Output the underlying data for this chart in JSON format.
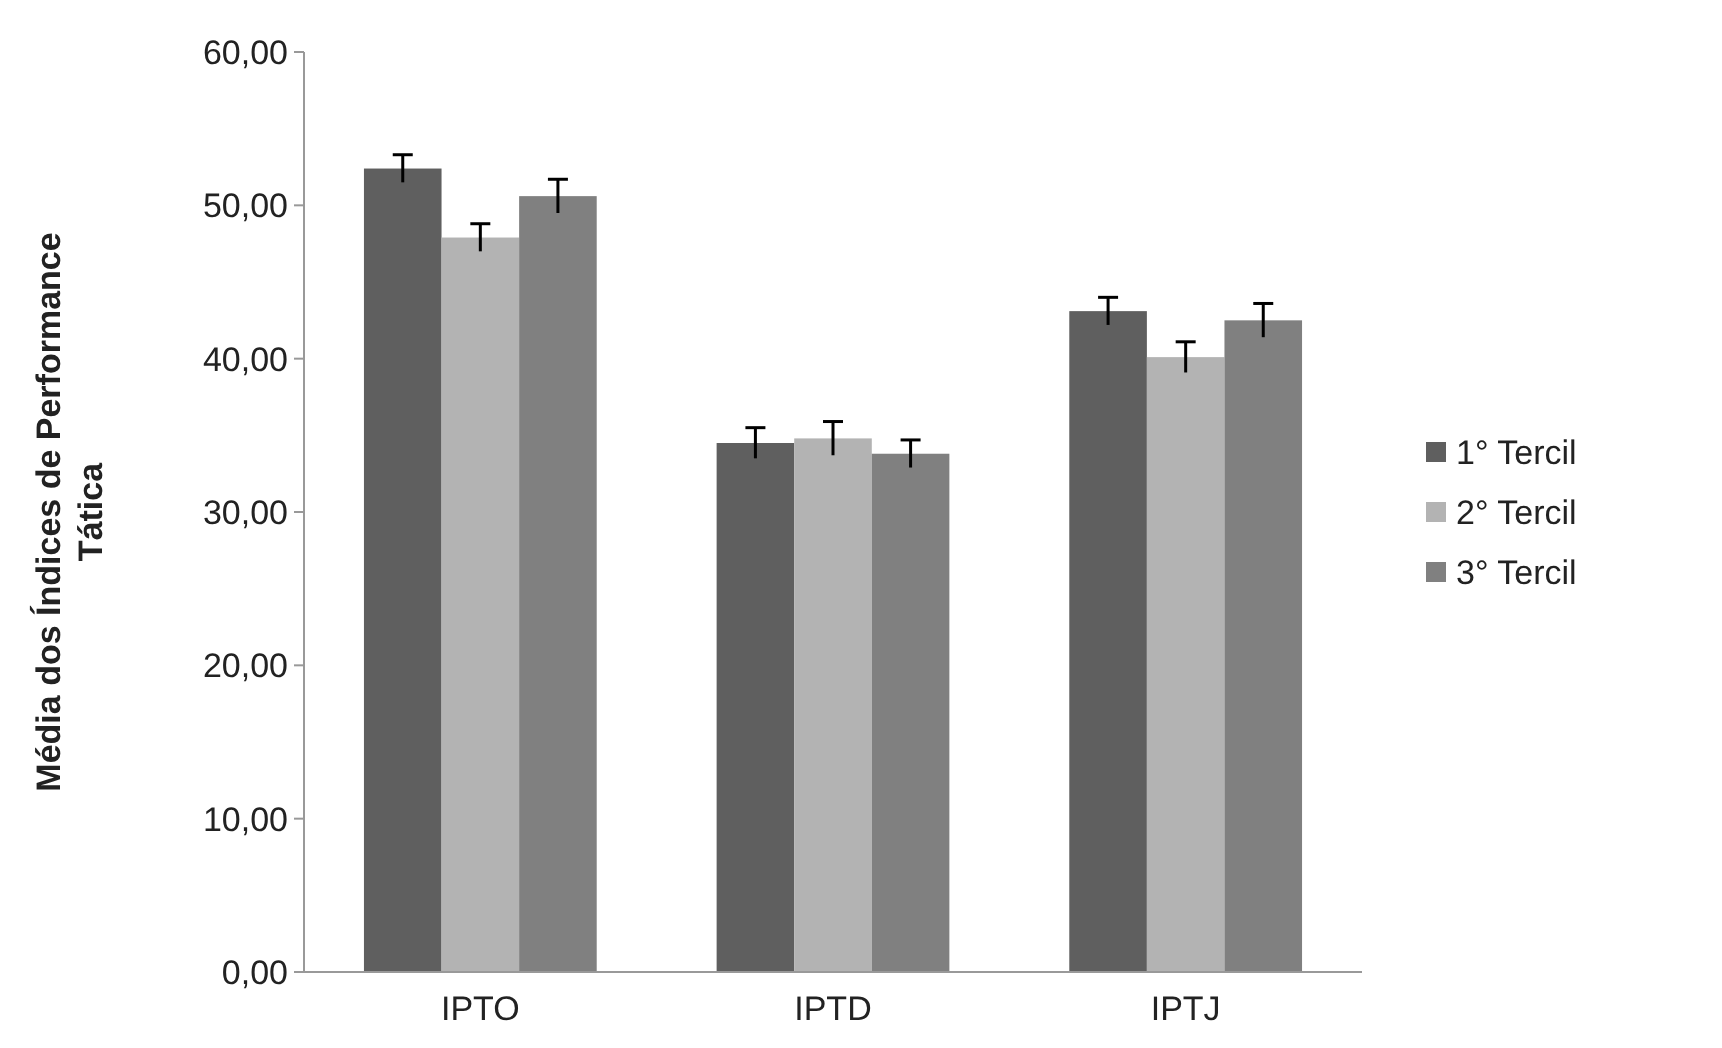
{
  "chart_data": {
    "type": "bar",
    "ylabel": "Média dos Índices de Performance Tática",
    "categories": [
      "IPTO",
      "IPTD",
      "IPTJ"
    ],
    "series": [
      {
        "name": "1° Tercil",
        "color": "#5f5f5f",
        "values": [
          52.4,
          34.5,
          43.1
        ],
        "errors": [
          0.9,
          1.0,
          0.9
        ]
      },
      {
        "name": "2° Tercil",
        "color": "#b3b3b3",
        "values": [
          47.9,
          34.8,
          40.1
        ],
        "errors": [
          0.9,
          1.1,
          1.0
        ]
      },
      {
        "name": "3° Tercil",
        "color": "#808080",
        "values": [
          50.6,
          33.8,
          42.5
        ],
        "errors": [
          1.1,
          0.9,
          1.1
        ]
      }
    ],
    "ylim": [
      0,
      60
    ],
    "yticks": [
      {
        "value": 0,
        "label": "0,00"
      },
      {
        "value": 10,
        "label": "10,00"
      },
      {
        "value": 20,
        "label": "20,00"
      },
      {
        "value": 30,
        "label": "30,00"
      },
      {
        "value": 40,
        "label": "40,00"
      },
      {
        "value": 50,
        "label": "50,00"
      },
      {
        "value": 60,
        "label": "60,00"
      }
    ],
    "grid": false,
    "legend": "right"
  }
}
